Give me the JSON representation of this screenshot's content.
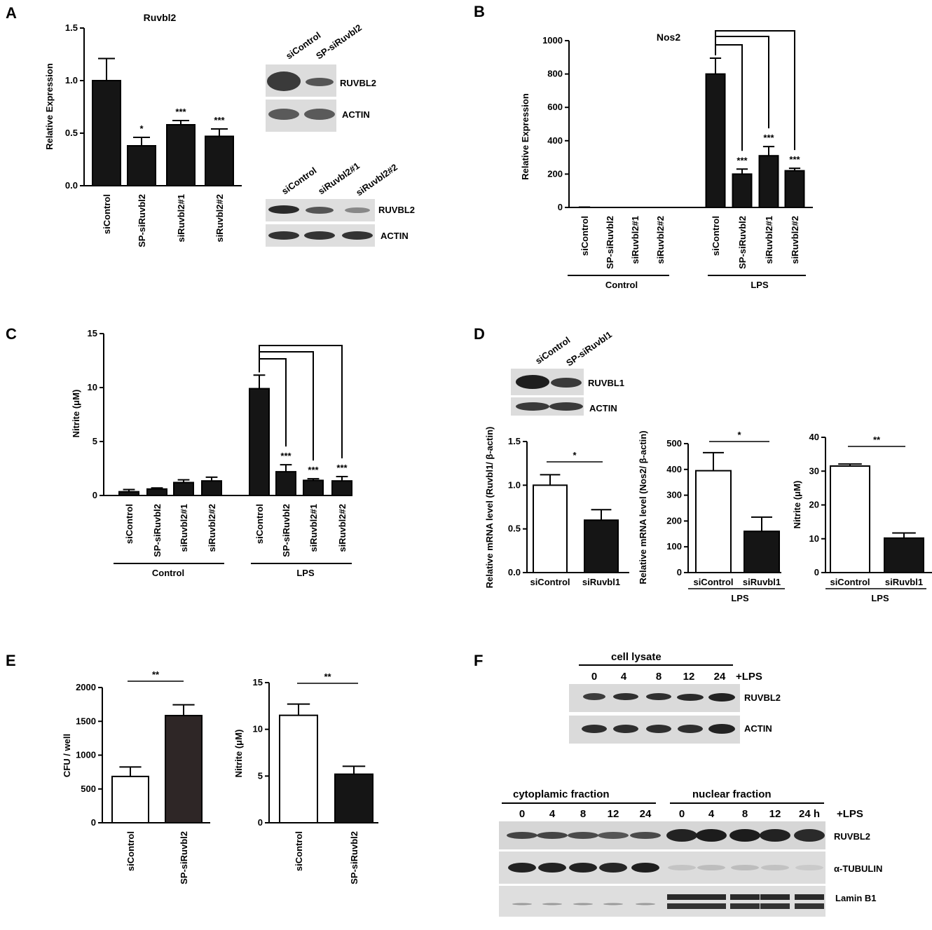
{
  "panel_labels": [
    "A",
    "B",
    "C",
    "D",
    "E",
    "F"
  ],
  "chart_data": [
    {
      "id": "A",
      "type": "bar",
      "title": "Ruvbl2",
      "xlabel": "",
      "ylabel": "Relative Expression",
      "ylim": [
        0,
        1.5
      ],
      "yticks": [
        "0.0",
        "0.5",
        "1.0",
        "1.5"
      ],
      "categories": [
        "siControl",
        "SP-siRuvbl2",
        "siRuvbl2#1",
        "siRuvbl2#2"
      ],
      "values": [
        1.0,
        0.38,
        0.58,
        0.47
      ],
      "errors": [
        0.21,
        0.08,
        0.04,
        0.07
      ],
      "significance": [
        "",
        "*",
        "***",
        "***"
      ],
      "bar_color": "#151515"
    },
    {
      "id": "B",
      "type": "bar",
      "title": "Nos2",
      "xlabel": "",
      "ylabel": "Relative Expression",
      "ylim": [
        0,
        1000
      ],
      "yticks": [
        "0",
        "200",
        "400",
        "600",
        "800",
        "1000"
      ],
      "categories": [
        "siControl",
        "SP-siRuvbl2",
        "siRuvbl2#1",
        "siRuvbl2#2",
        "siControl",
        "SP-siRuvbl2",
        "siRuvbl2#1",
        "siRuvbl2#2"
      ],
      "groups": [
        "Control",
        "LPS"
      ],
      "values": [
        1,
        0,
        0,
        0,
        800,
        200,
        310,
        220
      ],
      "errors": [
        1,
        0,
        0,
        0,
        95,
        30,
        55,
        15
      ],
      "significance": [
        "",
        "",
        "",
        "",
        "",
        "***",
        "***",
        "***"
      ],
      "bar_color": "#151515"
    },
    {
      "id": "C",
      "type": "bar",
      "title": "",
      "xlabel": "",
      "ylabel": "Nitrite (μM)",
      "ylim": [
        0,
        15
      ],
      "yticks": [
        "0",
        "5",
        "10",
        "15"
      ],
      "categories": [
        "siControl",
        "SP-siRuvbl2",
        "siRuvbl2#1",
        "siRuvbl2#2",
        "siControl",
        "SP-siRuvbl2",
        "siRuvbl2#1",
        "siRuvbl2#2"
      ],
      "groups": [
        "Control",
        "LPS"
      ],
      "values": [
        0.35,
        0.6,
        1.2,
        1.35,
        9.9,
        2.2,
        1.4,
        1.35
      ],
      "errors": [
        0.2,
        0.1,
        0.25,
        0.35,
        1.25,
        0.65,
        0.15,
        0.4
      ],
      "significance": [
        "",
        "",
        "",
        "",
        "",
        "***",
        "***",
        "***"
      ],
      "bar_color": "#151515"
    },
    {
      "id": "D1",
      "type": "bar",
      "title": "",
      "xlabel": "",
      "ylabel": "Relative mRNA level (Ruvbl1/ β-actin)",
      "ylim": [
        0,
        1.5
      ],
      "yticks": [
        "0.0",
        "0.5",
        "1.0",
        "1.5"
      ],
      "categories": [
        "siControl",
        "siRuvbl1"
      ],
      "values": [
        1.0,
        0.6
      ],
      "errors": [
        0.12,
        0.12
      ],
      "significance": "*",
      "colors": [
        "#ffffff",
        "#151515"
      ]
    },
    {
      "id": "D2",
      "type": "bar",
      "title": "",
      "xlabel": "",
      "ylabel": "Relative mRNA level (Nos2/ β-actin)",
      "ylim": [
        0,
        500
      ],
      "yticks": [
        "0",
        "100",
        "200",
        "300",
        "400",
        "500"
      ],
      "categories": [
        "siControl",
        "siRuvbl1"
      ],
      "group": "LPS",
      "values": [
        395,
        160
      ],
      "errors": [
        70,
        55
      ],
      "significance": "*",
      "colors": [
        "#ffffff",
        "#151515"
      ]
    },
    {
      "id": "D3",
      "type": "bar",
      "title": "",
      "xlabel": "",
      "ylabel": "Nitrite (μM)",
      "ylim": [
        0,
        40
      ],
      "yticks": [
        "0",
        "10",
        "20",
        "30",
        "40"
      ],
      "categories": [
        "siControl",
        "siRuvbl1"
      ],
      "group": "LPS",
      "values": [
        31.5,
        10.2
      ],
      "errors": [
        0.6,
        1.5
      ],
      "significance": "**",
      "colors": [
        "#ffffff",
        "#151515"
      ]
    },
    {
      "id": "E1",
      "type": "bar",
      "title": "",
      "xlabel": "",
      "ylabel": "CFU / well",
      "ylim": [
        0,
        2000
      ],
      "yticks": [
        "0",
        "500",
        "1000",
        "1500",
        "2000"
      ],
      "categories": [
        "siControl",
        "SP-siRuvbl2"
      ],
      "values": [
        685,
        1585
      ],
      "errors": [
        140,
        160
      ],
      "significance": "**",
      "colors": [
        "#ffffff",
        "#2e2626"
      ]
    },
    {
      "id": "E2",
      "type": "bar",
      "title": "",
      "xlabel": "",
      "ylabel": "Nitrite (μM)",
      "ylim": [
        0,
        15
      ],
      "yticks": [
        "0",
        "5",
        "10",
        "15"
      ],
      "categories": [
        "siControl",
        "SP-siRuvbl2"
      ],
      "values": [
        11.5,
        5.2
      ],
      "errors": [
        1.2,
        0.85
      ],
      "significance": "**",
      "colors": [
        "#ffffff",
        "#151515"
      ]
    }
  ],
  "blots": {
    "a_top": {
      "lanes": [
        "siControl",
        "SP-siRuvbl2"
      ],
      "rows": [
        "RUVBL2",
        "ACTIN"
      ]
    },
    "a_bottom": {
      "lanes": [
        "siControl",
        "siRuvbl2#1",
        "siRuvbl2#2"
      ],
      "rows": [
        "RUVBL2",
        "ACTIN"
      ]
    },
    "d": {
      "lanes": [
        "siControl",
        "SP-siRuvbl1"
      ],
      "rows": [
        "RUVBL1",
        "ACTIN"
      ]
    },
    "f_top": {
      "header": "cell lysate",
      "times": [
        "0",
        "4",
        "8",
        "12",
        "24"
      ],
      "lps": "+LPS",
      "rows": [
        "RUVBL2",
        "ACTIN"
      ]
    },
    "f_bottom": {
      "header_left": "cytoplamic fraction",
      "header_right": "nuclear fraction",
      "times_left": [
        "0",
        "4",
        "8",
        "12",
        "24"
      ],
      "times_right": [
        "0",
        "4",
        "8",
        "12",
        "24 h"
      ],
      "lps": "+LPS",
      "rows": [
        "RUVBL2",
        "α-TUBULIN",
        "Lamin B1"
      ]
    }
  }
}
